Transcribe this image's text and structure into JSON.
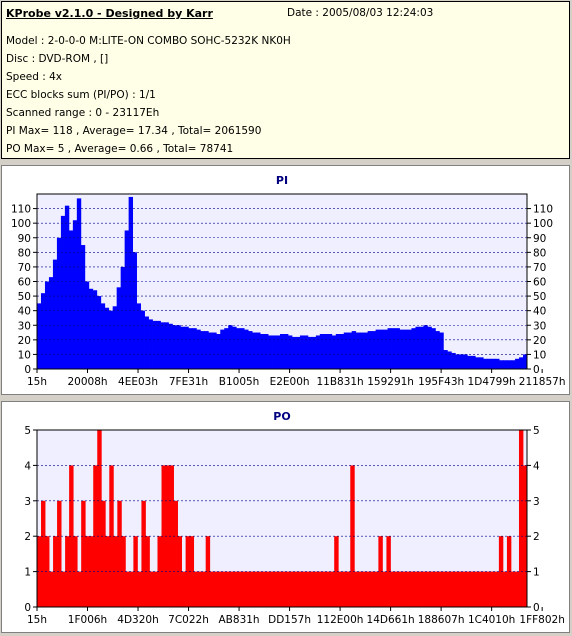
{
  "info": {
    "title": "KProbe v2.1.0 - Designed by Karr",
    "date": "Date : 2005/08/03 12:24:03",
    "model": "Model : 2-0-0-0 M:LITE-ON COMBO SOHC-5232K NK0H",
    "disc": "Disc : DVD-ROM ,  []",
    "speed": "Speed : 4x",
    "ecc": "ECC blocks sum (PI/PO) : 1/1",
    "range": "Scanned range : 0 - 23117Eh",
    "pi_stats": "PI Max= 118 , Average= 17.34 , Total= 2061590",
    "po_stats": "PO Max= 5 , Average= 0.66 , Total= 78741"
  },
  "colors": {
    "pi": "#0000ff",
    "po": "#ff0000",
    "plot_bg": "#efefff",
    "grid": "#000080"
  },
  "chart_data": [
    {
      "type": "area",
      "title": "PI",
      "ylim": [
        0,
        120
      ],
      "yticks": [
        0,
        10,
        20,
        30,
        40,
        50,
        60,
        70,
        80,
        90,
        100,
        110
      ],
      "xtick_labels": [
        "15h",
        "20008h",
        "4EE03h",
        "7FE31h",
        "B1005h",
        "E2E00h",
        "11B831h",
        "159291h",
        "195F43h",
        "1D4799h",
        "211857h"
      ],
      "x_range_hex": [
        "0",
        "23117E"
      ],
      "grid": true,
      "series": [
        {
          "values": [
            45,
            52,
            60,
            63,
            75,
            90,
            105,
            112,
            95,
            102,
            117,
            85,
            60,
            55,
            54,
            50,
            45,
            42,
            40,
            43,
            56,
            70,
            95,
            118,
            80,
            45,
            40,
            36,
            34,
            33,
            33,
            32,
            32,
            31,
            30,
            30,
            29,
            29,
            28,
            28,
            27,
            26,
            26,
            25,
            25,
            24,
            27,
            28,
            30,
            29,
            28,
            28,
            27,
            26,
            25,
            25,
            24,
            24,
            23,
            23,
            23,
            24,
            24,
            23,
            22,
            22,
            23,
            23,
            22,
            22,
            23,
            24,
            24,
            24,
            23,
            24,
            24,
            25,
            25,
            26,
            25,
            25,
            25,
            26,
            26,
            27,
            27,
            27,
            28,
            28,
            28,
            27,
            27,
            27,
            28,
            29,
            29,
            30,
            29,
            28,
            26,
            25,
            13,
            12,
            11,
            10,
            10,
            10,
            9,
            9,
            8,
            8,
            7,
            7,
            7,
            7,
            6,
            6,
            6,
            6,
            7,
            8,
            10
          ]
        }
      ]
    },
    {
      "type": "bar",
      "title": "PO",
      "ylim": [
        0,
        5
      ],
      "yticks": [
        0,
        1,
        2,
        3,
        4,
        5
      ],
      "xtick_labels": [
        "15h",
        "1F006h",
        "4D320h",
        "7C022h",
        "AB831h",
        "DD157h",
        "112E00h",
        "14D661h",
        "188607h",
        "1C4010h",
        "1FF802h"
      ],
      "x_range_hex": [
        "0",
        "23117E"
      ],
      "grid": true,
      "series": [
        {
          "values": [
            2,
            3,
            2,
            1,
            2,
            3,
            1,
            2,
            4,
            2,
            1,
            3,
            2,
            2,
            4,
            5,
            3,
            2,
            4,
            2,
            3,
            2,
            1,
            1,
            2,
            1,
            3,
            2,
            1,
            1,
            2,
            4,
            4,
            4,
            3,
            2,
            1,
            2,
            2,
            1,
            1,
            1,
            2,
            1,
            1,
            1,
            1,
            1,
            1,
            1,
            1,
            1,
            1,
            1,
            1,
            1,
            1,
            1,
            1,
            1,
            1,
            1,
            1,
            1,
            1,
            1,
            1,
            1,
            1,
            1,
            1,
            1,
            1,
            1,
            2,
            1,
            1,
            1,
            4,
            1,
            1,
            1,
            1,
            1,
            1,
            2,
            1,
            2,
            1,
            1,
            1,
            1,
            1,
            1,
            1,
            1,
            1,
            1,
            1,
            1,
            1,
            1,
            1,
            1,
            1,
            1,
            1,
            1,
            1,
            1,
            1,
            1,
            1,
            1,
            1,
            2,
            1,
            2,
            1,
            1,
            5,
            4
          ]
        }
      ]
    }
  ]
}
